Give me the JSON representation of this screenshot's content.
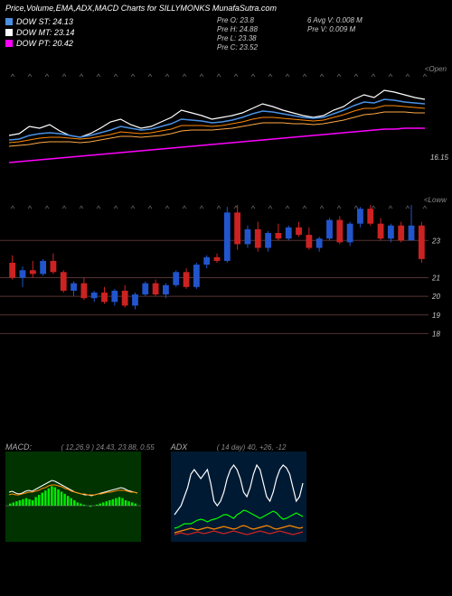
{
  "title": "Price,Volume,EMA,ADX,MACD Charts for SILLYMONKS MunafaSutra.com",
  "legend": {
    "items": [
      {
        "label": "DOW ST: 24.13",
        "color": "#4a90e2"
      },
      {
        "label": "DOW MT: 23.14",
        "color": "#ffffff"
      },
      {
        "label": "DOW PT: 20.42",
        "color": "#ff00ff"
      }
    ]
  },
  "header_info": {
    "col1": [
      "Pre   O: 23.8",
      "Pre   H: 24.88",
      "Pre   L: 23.38",
      "Pre   C: 23.52"
    ],
    "col2": [
      "6   Avg V: 0.008 M",
      "Pre   V: 0.009 M"
    ]
  },
  "price_panel": {
    "right_label": "16.15",
    "corner": "<Open",
    "ema_series": [
      {
        "color": "#ffffff",
        "width": 1.2,
        "points": [
          60,
          62,
          70,
          68,
          72,
          65,
          60,
          58,
          62,
          68,
          75,
          78,
          72,
          68,
          70,
          75,
          80,
          88,
          85,
          82,
          78,
          80,
          82,
          85,
          90,
          95,
          92,
          88,
          85,
          82,
          80,
          82,
          88,
          92,
          100,
          105,
          102,
          110,
          108,
          105,
          102,
          100
        ]
      },
      {
        "color": "#4a90e2",
        "width": 1.5,
        "points": [
          55,
          56,
          60,
          62,
          63,
          62,
          60,
          58,
          60,
          63,
          66,
          70,
          68,
          66,
          67,
          70,
          73,
          78,
          77,
          76,
          74,
          75,
          77,
          80,
          84,
          87,
          86,
          84,
          82,
          80,
          79,
          80,
          84,
          88,
          93,
          97,
          96,
          100,
          99,
          97,
          96,
          95
        ]
      },
      {
        "color": "#ff8800",
        "width": 1,
        "points": [
          52,
          53,
          55,
          57,
          58,
          58,
          57,
          56,
          57,
          59,
          61,
          64,
          63,
          62,
          63,
          65,
          67,
          71,
          71,
          71,
          70,
          71,
          73,
          75,
          78,
          80,
          80,
          79,
          78,
          77,
          76,
          77,
          80,
          83,
          87,
          90,
          90,
          93,
          93,
          92,
          91,
          90
        ]
      },
      {
        "color": "#ffaa44",
        "width": 1,
        "points": [
          48,
          49,
          50,
          52,
          53,
          53,
          53,
          52,
          53,
          55,
          57,
          59,
          59,
          58,
          59,
          60,
          62,
          65,
          66,
          66,
          66,
          67,
          68,
          70,
          72,
          74,
          74,
          74,
          73,
          73,
          72,
          73,
          75,
          77,
          80,
          83,
          84,
          86,
          86,
          86,
          85,
          85
        ]
      },
      {
        "color": "#ff00ff",
        "width": 1.5,
        "points": [
          30,
          31,
          32,
          33,
          34,
          35,
          36,
          37,
          38,
          39,
          40,
          41,
          42,
          43,
          44,
          45,
          46,
          47,
          48,
          49,
          50,
          51,
          52,
          53,
          54,
          55,
          56,
          57,
          58,
          59,
          60,
          61,
          62,
          63,
          64,
          65,
          66,
          67,
          67,
          68,
          68,
          68
        ]
      }
    ]
  },
  "candle_panel": {
    "corner": "<Loww",
    "grid_lines": [
      18,
      19,
      20,
      21,
      23
    ],
    "y_min": 17,
    "y_max": 25,
    "candles": [
      {
        "o": 21.8,
        "h": 22.2,
        "l": 20.9,
        "c": 21.0,
        "up": false
      },
      {
        "o": 21.0,
        "h": 21.6,
        "l": 20.5,
        "c": 21.4,
        "up": true
      },
      {
        "o": 21.4,
        "h": 21.9,
        "l": 21.0,
        "c": 21.2,
        "up": false
      },
      {
        "o": 21.2,
        "h": 22.0,
        "l": 21.1,
        "c": 21.9,
        "up": true
      },
      {
        "o": 21.9,
        "h": 22.3,
        "l": 21.2,
        "c": 21.3,
        "up": false
      },
      {
        "o": 21.3,
        "h": 21.4,
        "l": 20.2,
        "c": 20.3,
        "up": false
      },
      {
        "o": 20.3,
        "h": 20.8,
        "l": 20.0,
        "c": 20.7,
        "up": true
      },
      {
        "o": 20.7,
        "h": 21.0,
        "l": 19.8,
        "c": 19.9,
        "up": false
      },
      {
        "o": 19.9,
        "h": 20.3,
        "l": 19.7,
        "c": 20.2,
        "up": true
      },
      {
        "o": 20.2,
        "h": 20.5,
        "l": 19.6,
        "c": 19.7,
        "up": false
      },
      {
        "o": 19.7,
        "h": 20.4,
        "l": 19.5,
        "c": 20.3,
        "up": true
      },
      {
        "o": 20.3,
        "h": 20.6,
        "l": 19.4,
        "c": 19.5,
        "up": false
      },
      {
        "o": 19.5,
        "h": 20.2,
        "l": 19.3,
        "c": 20.1,
        "up": true
      },
      {
        "o": 20.1,
        "h": 20.8,
        "l": 20.0,
        "c": 20.7,
        "up": true
      },
      {
        "o": 20.7,
        "h": 20.9,
        "l": 20.0,
        "c": 20.1,
        "up": false
      },
      {
        "o": 20.1,
        "h": 20.7,
        "l": 19.9,
        "c": 20.6,
        "up": true
      },
      {
        "o": 20.6,
        "h": 21.4,
        "l": 20.5,
        "c": 21.3,
        "up": true
      },
      {
        "o": 21.3,
        "h": 21.5,
        "l": 20.4,
        "c": 20.5,
        "up": false
      },
      {
        "o": 20.5,
        "h": 21.8,
        "l": 20.4,
        "c": 21.7,
        "up": true
      },
      {
        "o": 21.7,
        "h": 22.2,
        "l": 21.5,
        "c": 22.1,
        "up": true
      },
      {
        "o": 22.1,
        "h": 22.3,
        "l": 21.8,
        "c": 21.9,
        "up": false
      },
      {
        "o": 21.9,
        "h": 24.8,
        "l": 21.8,
        "c": 24.5,
        "up": true
      },
      {
        "o": 24.5,
        "h": 24.9,
        "l": 22.5,
        "c": 22.8,
        "up": false
      },
      {
        "o": 22.8,
        "h": 23.8,
        "l": 22.6,
        "c": 23.6,
        "up": true
      },
      {
        "o": 23.6,
        "h": 24.0,
        "l": 22.4,
        "c": 22.6,
        "up": false
      },
      {
        "o": 22.6,
        "h": 23.5,
        "l": 22.4,
        "c": 23.4,
        "up": true
      },
      {
        "o": 23.4,
        "h": 23.9,
        "l": 23.0,
        "c": 23.1,
        "up": false
      },
      {
        "o": 23.1,
        "h": 23.8,
        "l": 23.0,
        "c": 23.7,
        "up": true
      },
      {
        "o": 23.7,
        "h": 24.0,
        "l": 23.2,
        "c": 23.3,
        "up": false
      },
      {
        "o": 23.3,
        "h": 23.7,
        "l": 22.5,
        "c": 22.6,
        "up": false
      },
      {
        "o": 22.6,
        "h": 23.2,
        "l": 22.4,
        "c": 23.1,
        "up": true
      },
      {
        "o": 23.1,
        "h": 24.2,
        "l": 23.0,
        "c": 24.1,
        "up": true
      },
      {
        "o": 24.1,
        "h": 24.3,
        "l": 22.8,
        "c": 22.9,
        "up": false
      },
      {
        "o": 22.9,
        "h": 24.0,
        "l": 22.7,
        "c": 23.9,
        "up": true
      },
      {
        "o": 23.9,
        "h": 24.8,
        "l": 23.7,
        "c": 24.7,
        "up": true
      },
      {
        "o": 24.7,
        "h": 24.9,
        "l": 23.8,
        "c": 23.9,
        "up": false
      },
      {
        "o": 23.9,
        "h": 24.2,
        "l": 23.0,
        "c": 23.1,
        "up": false
      },
      {
        "o": 23.1,
        "h": 23.9,
        "l": 22.9,
        "c": 23.8,
        "up": true
      },
      {
        "o": 23.8,
        "h": 24.0,
        "l": 22.9,
        "c": 23.0,
        "up": false
      },
      {
        "o": 23.0,
        "h": 24.9,
        "l": 23.0,
        "c": 23.8,
        "up": true
      },
      {
        "o": 23.8,
        "h": 24.0,
        "l": 21.8,
        "c": 22.0,
        "up": false
      }
    ],
    "colors": {
      "up": "#2255cc",
      "down": "#cc2222",
      "wick": "#888",
      "grid": "#553333"
    }
  },
  "macd": {
    "label": "MACD:",
    "sublabel": "( 12,26,9 ) 24.43, 23.88, 0.55",
    "bg": "#003300",
    "hist": [
      2,
      3,
      4,
      5,
      6,
      7,
      6,
      5,
      8,
      10,
      12,
      14,
      16,
      18,
      17,
      15,
      13,
      11,
      9,
      7,
      5,
      3,
      2,
      1,
      0,
      -1,
      0,
      1,
      2,
      3,
      4,
      5,
      6,
      7,
      8,
      7,
      5,
      4,
      3,
      2
    ],
    "hist_color": "#00ff00",
    "lines": [
      {
        "color": "#ffffff",
        "points": [
          45,
          44,
          46,
          47,
          46,
          44,
          43,
          44,
          42,
          40,
          38,
          36,
          34,
          32,
          33,
          35,
          37,
          39,
          41,
          43,
          45,
          46,
          47,
          48,
          48,
          49,
          48,
          47,
          46,
          45,
          44,
          43,
          42,
          41,
          40,
          41,
          43,
          44,
          45,
          46
        ]
      },
      {
        "color": "#ff8800",
        "points": [
          48,
          47,
          48,
          48,
          47,
          46,
          45,
          45,
          44,
          43,
          41,
          40,
          38,
          37,
          37,
          38,
          39,
          41,
          42,
          44,
          45,
          46,
          47,
          47,
          48,
          48,
          48,
          47,
          47,
          46,
          45,
          45,
          44,
          43,
          43,
          43,
          44,
          45,
          45,
          46
        ]
      }
    ]
  },
  "adx": {
    "label": "ADX",
    "sublabel": "( 14   day) 40, +26, -12",
    "bg": "#001a33",
    "lines": [
      {
        "color": "#ffffff",
        "points": [
          70,
          65,
          60,
          50,
          40,
          25,
          20,
          25,
          30,
          25,
          20,
          35,
          55,
          60,
          55,
          45,
          30,
          20,
          15,
          20,
          30,
          45,
          50,
          40,
          25,
          15,
          20,
          35,
          50,
          55,
          45,
          30,
          20,
          15,
          18,
          25,
          40,
          55,
          50,
          35
        ]
      },
      {
        "color": "#00ff00",
        "points": [
          85,
          84,
          82,
          80,
          80,
          80,
          78,
          76,
          75,
          76,
          78,
          76,
          75,
          74,
          72,
          70,
          70,
          72,
          74,
          70,
          68,
          65,
          66,
          68,
          70,
          72,
          74,
          72,
          70,
          68,
          66,
          68,
          72,
          75,
          74,
          72,
          70,
          68,
          70,
          72
        ]
      },
      {
        "color": "#ff8800",
        "points": [
          90,
          89,
          88,
          87,
          86,
          85,
          86,
          87,
          86,
          85,
          84,
          85,
          86,
          85,
          84,
          83,
          84,
          85,
          86,
          85,
          83,
          82,
          83,
          85,
          86,
          85,
          84,
          83,
          82,
          83,
          85,
          86,
          85,
          84,
          83,
          82,
          83,
          84,
          85,
          84
        ]
      },
      {
        "color": "#cc2222",
        "points": [
          92,
          91,
          90,
          91,
          92,
          91,
          90,
          89,
          90,
          91,
          90,
          89,
          88,
          89,
          90,
          91,
          90,
          89,
          88,
          89,
          90,
          91,
          92,
          91,
          90,
          89,
          88,
          89,
          90,
          91,
          90,
          89,
          88,
          89,
          90,
          91,
          92,
          91,
          90,
          89
        ]
      }
    ]
  }
}
